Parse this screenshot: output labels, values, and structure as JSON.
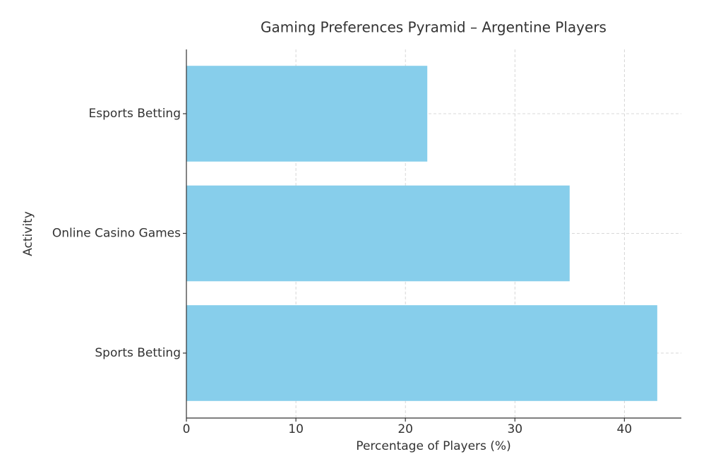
{
  "chart_data": {
    "type": "barh",
    "title": "Gaming Preferences Pyramid – Argentine Players",
    "x_label": "Percentage of Players (%)",
    "y_label": "Activity",
    "categories": [
      "Sports Betting",
      "Online Casino Games",
      "Esports Betting"
    ],
    "values": [
      43,
      35,
      22
    ],
    "color": "#87ceeb",
    "xlim": [
      0,
      45.2
    ],
    "xticks": [
      0,
      10,
      20,
      30,
      40
    ],
    "grid": true
  }
}
